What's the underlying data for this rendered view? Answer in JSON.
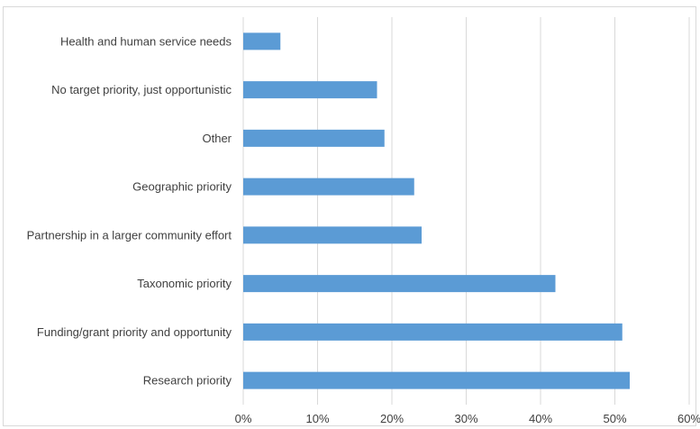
{
  "chart_data": {
    "type": "bar",
    "orientation": "horizontal",
    "categories": [
      "Health and human service needs",
      "No target priority, just opportunistic",
      "Other",
      "Geographic priority",
      "Partnership in a larger community effort",
      "Taxonomic priority",
      "Funding/grant priority and opportunity",
      "Research priority"
    ],
    "values": [
      5,
      18,
      19,
      23,
      24,
      42,
      51,
      52
    ],
    "xlim": [
      0,
      60
    ],
    "xticks": [
      0,
      10,
      20,
      30,
      40,
      50,
      60
    ],
    "xtick_labels": [
      "0%",
      "10%",
      "20%",
      "30%",
      "40%",
      "50%",
      "60%"
    ],
    "title": "",
    "xlabel": "",
    "ylabel": "",
    "grid": "vertical",
    "legend": "none",
    "bar_color": "#5b9bd5",
    "grid_color": "#d9d9d9",
    "text_color": "#404040"
  }
}
